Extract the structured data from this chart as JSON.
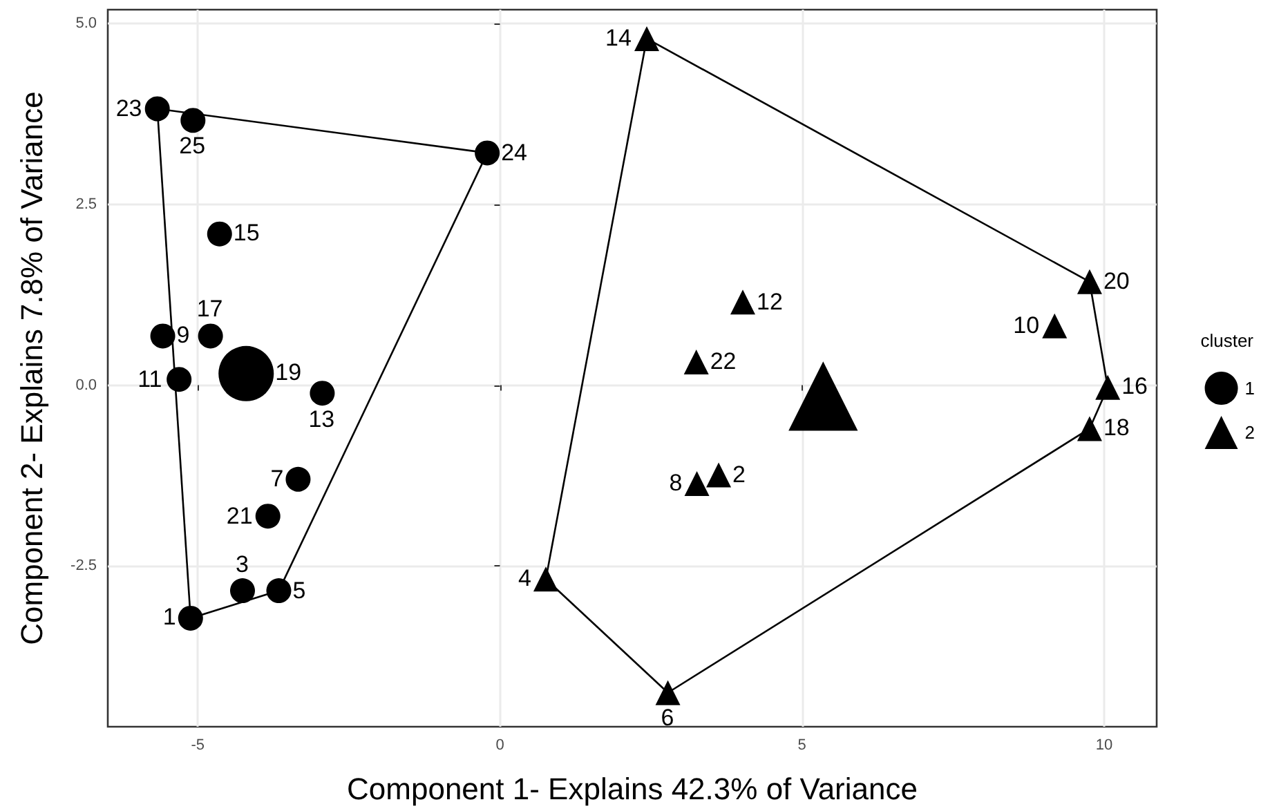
{
  "chart_data": {
    "type": "scatter",
    "xlabel": "Component 1- Explains 42.3% of Variance",
    "ylabel": "Component 2- Explains 7.8% of Variance",
    "legend_title": "cluster",
    "legend": "right",
    "grid": true,
    "xlim": [
      -6.49,
      10.87
    ],
    "xticks": [
      -5,
      0,
      5,
      10
    ],
    "ylim": [
      -4.72,
      5.19
    ],
    "yticks": [
      {
        "value": -2.5,
        "label": "-2.5"
      },
      {
        "value": 0,
        "label": "0.0"
      },
      {
        "value": 2.5,
        "label": "2.5"
      },
      {
        "value": 5,
        "label": "5.0"
      }
    ],
    "series": [
      {
        "type": "line",
        "color": "#000000",
        "marker": "none",
        "x": [
          -5.67,
          -0.21
        ],
        "values": [
          3.82,
          3.21
        ]
      },
      {
        "type": "line",
        "color": "#000000",
        "marker": "none",
        "x": [
          -3.66,
          -0.21
        ],
        "values": [
          -2.84,
          3.21
        ]
      },
      {
        "type": "line",
        "color": "#000000",
        "marker": "none",
        "x": [
          -5.12,
          -3.66
        ],
        "values": [
          -3.22,
          -2.84
        ]
      },
      {
        "type": "line",
        "color": "#000000",
        "marker": "none",
        "x": [
          -5.67,
          -5.12
        ],
        "values": [
          3.82,
          -3.22
        ]
      },
      {
        "type": "line",
        "color": "#000000",
        "marker": "none",
        "x": [
          2.43,
          9.76
        ],
        "values": [
          4.79,
          1.43
        ]
      },
      {
        "type": "line",
        "color": "#000000",
        "marker": "none",
        "x": [
          9.76,
          10.06
        ],
        "values": [
          1.43,
          -0.03
        ]
      },
      {
        "type": "line",
        "color": "#000000",
        "marker": "none",
        "x": [
          9.76,
          10.06
        ],
        "values": [
          -0.6,
          -0.03
        ]
      },
      {
        "type": "line",
        "color": "#000000",
        "marker": "none",
        "x": [
          2.78,
          9.76
        ],
        "values": [
          -4.25,
          -0.6
        ]
      },
      {
        "type": "line",
        "color": "#000000",
        "marker": "none",
        "x": [
          0.76,
          2.78
        ],
        "values": [
          -2.68,
          -4.25
        ]
      },
      {
        "type": "line",
        "color": "#000000",
        "marker": "none",
        "x": [
          0.76,
          2.43
        ],
        "values": [
          -2.68,
          4.79
        ]
      },
      {
        "name": "1",
        "color": "#000000",
        "marker": "circle",
        "x": [
          -5.67,
          -5.08,
          -0.21,
          -4.64,
          -5.58,
          -4.79,
          -5.31,
          -2.94,
          -3.34,
          -3.84,
          -4.26,
          -3.66,
          -5.12
        ],
        "values": [
          3.82,
          3.66,
          3.21,
          2.09,
          0.68,
          0.68,
          0.08,
          -0.11,
          -1.3,
          -1.81,
          -2.84,
          -2.84,
          -3.22
        ]
      },
      {
        "name": "2",
        "color": "#000000",
        "marker": "triangle",
        "x": [
          2.43,
          9.76,
          9.18,
          4.02,
          3.25,
          10.06,
          9.76,
          3.62,
          3.26,
          0.76,
          2.78
        ],
        "values": [
          4.79,
          1.43,
          0.82,
          1.15,
          0.32,
          -0.03,
          -0.6,
          -1.24,
          -1.36,
          -2.68,
          -4.25
        ]
      },
      {
        "type": "bubble",
        "color": "#000000",
        "marker": "circle",
        "x": [
          -4.2
        ],
        "values": [
          0.16
        ],
        "sizes": [
          1
        ]
      },
      {
        "type": "bubble",
        "color": "#000000",
        "marker": "triangle",
        "x": [
          5.35
        ],
        "values": [
          -0.15
        ],
        "sizes": [
          1
        ]
      }
    ],
    "annotations": [
      {
        "text": "23",
        "x": -5.67,
        "y": 3.82
      },
      {
        "text": "25",
        "x": -5.08,
        "y": 3.66
      },
      {
        "text": "24",
        "x": -0.21,
        "y": 3.21
      },
      {
        "text": "15",
        "x": -4.64,
        "y": 2.09
      },
      {
        "text": "9",
        "x": -5.58,
        "y": 0.68
      },
      {
        "text": "17",
        "x": -4.79,
        "y": 0.68
      },
      {
        "text": "11",
        "x": -5.31,
        "y": 0.08
      },
      {
        "text": "19",
        "x": -4.2,
        "y": 0.16
      },
      {
        "text": "13",
        "x": -2.94,
        "y": -0.11
      },
      {
        "text": "7",
        "x": -3.34,
        "y": -1.3
      },
      {
        "text": "21",
        "x": -3.84,
        "y": -1.81
      },
      {
        "text": "3",
        "x": -4.26,
        "y": -2.84
      },
      {
        "text": "5",
        "x": -3.66,
        "y": -2.84
      },
      {
        "text": "1",
        "x": -5.12,
        "y": -3.22
      },
      {
        "text": "14",
        "x": 2.43,
        "y": 4.79
      },
      {
        "text": "20",
        "x": 9.76,
        "y": 1.43
      },
      {
        "text": "10",
        "x": 9.18,
        "y": 0.82
      },
      {
        "text": "12",
        "x": 4.02,
        "y": 1.15
      },
      {
        "text": "22",
        "x": 3.25,
        "y": 0.32
      },
      {
        "text": "16",
        "x": 10.06,
        "y": -0.03
      },
      {
        "text": "18",
        "x": 9.76,
        "y": -0.6
      },
      {
        "text": "2",
        "x": 3.62,
        "y": -1.24
      },
      {
        "text": "8",
        "x": 3.26,
        "y": -1.36
      },
      {
        "text": "4",
        "x": 0.76,
        "y": -2.68
      },
      {
        "text": "6",
        "x": 2.78,
        "y": -4.25
      }
    ]
  }
}
